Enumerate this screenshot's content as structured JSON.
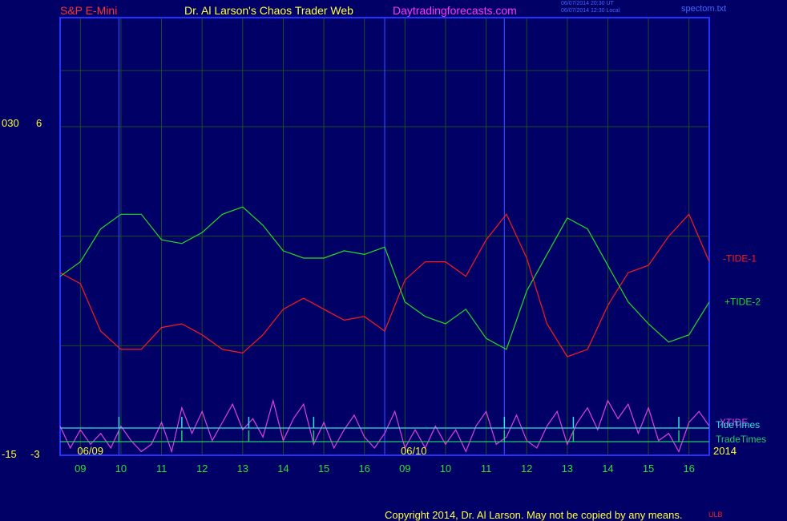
{
  "header": {
    "instrument": "S&P E-Mini",
    "site": "Dr. Al Larson's Chaos Trader Web",
    "url": "Daytradingforecasts.com",
    "timestamp_ut": "06/07/2014 20:30 UT",
    "timestamp_local": "06/07/2014 12:30 Local",
    "file": "spectom.txt"
  },
  "footer": {
    "copyright": "Copyright 2014, Dr. Al Larson. May not be copied by any means.",
    "tag": "ULB"
  },
  "colors": {
    "background": "#000066",
    "frame": "#2233ff",
    "grid": "#1e4d1e",
    "tide1": "#ff1a1a",
    "tide2": "#22dd22",
    "xtide": "#e040e0",
    "tide_times": "#33e0e0",
    "trade_times": "#22cc66",
    "day_divider": "#3344ff",
    "axis_text": "#ffff33",
    "hour_text": "#33dd33",
    "instrument_text": "#ff3333",
    "site_text": "#ffff44",
    "url_text": "#ff33ff"
  },
  "chart_data": {
    "type": "line",
    "y_axis_labels": {
      "top_outer": "030",
      "top_inner": "6",
      "bottom_outer": "-15",
      "bottom_inner": "-3"
    },
    "ylim": [
      -3,
      6
    ],
    "x_hours": [
      "09",
      "10",
      "11",
      "12",
      "13",
      "14",
      "15",
      "16",
      "09",
      "10",
      "11",
      "12",
      "13",
      "14",
      "15",
      "16"
    ],
    "date_labels": [
      "06/09",
      "06/10",
      "2014"
    ],
    "series": [
      {
        "name": "-TIDE-1",
        "x": [
          0,
          1,
          2,
          3,
          4,
          5,
          6,
          7,
          8,
          9,
          10,
          11,
          12,
          13,
          14,
          15,
          16,
          17,
          18,
          19,
          20,
          21,
          22,
          23,
          24,
          25,
          26,
          27,
          28,
          29,
          30,
          31,
          32
        ],
        "values": [
          2.0,
          1.7,
          0.4,
          -0.1,
          -0.1,
          0.5,
          0.6,
          0.3,
          -0.1,
          -0.2,
          0.3,
          1.0,
          1.3,
          1.0,
          0.7,
          0.8,
          0.4,
          1.8,
          2.3,
          2.3,
          1.9,
          2.9,
          3.6,
          2.4,
          0.6,
          -0.3,
          -0.1,
          1.1,
          2.0,
          2.2,
          3.0,
          3.6,
          2.3
        ]
      },
      {
        "name": "+TIDE-2",
        "x": [
          0,
          1,
          2,
          3,
          4,
          5,
          6,
          7,
          8,
          9,
          10,
          11,
          12,
          13,
          14,
          15,
          16,
          17,
          18,
          19,
          20,
          21,
          22,
          23,
          24,
          25,
          26,
          27,
          28,
          29,
          30,
          31,
          32
        ],
        "values": [
          1.9,
          2.3,
          3.2,
          3.6,
          3.6,
          2.9,
          2.8,
          3.1,
          3.6,
          3.8,
          3.3,
          2.6,
          2.4,
          2.4,
          2.6,
          2.5,
          2.7,
          1.2,
          0.8,
          0.6,
          1.0,
          0.2,
          -0.1,
          1.5,
          2.5,
          3.5,
          3.2,
          2.2,
          1.2,
          0.6,
          0.1,
          0.3,
          1.2
        ]
      },
      {
        "name": "XTIDE",
        "x": [
          0,
          0.5,
          1,
          1.5,
          2,
          2.5,
          3,
          3.5,
          4,
          4.5,
          5,
          5.5,
          6,
          6.5,
          7,
          7.5,
          8,
          8.5,
          9,
          9.5,
          10,
          10.5,
          11,
          11.5,
          12,
          12.5,
          13,
          13.5,
          14,
          14.5,
          15,
          15.5,
          16,
          16.5,
          17,
          17.5,
          18,
          18.5,
          19,
          19.5,
          20,
          20.5,
          21,
          21.5,
          22,
          22.5,
          23,
          23.5,
          24,
          24.5,
          25,
          25.5,
          26,
          26.5,
          27,
          27.5,
          28,
          28.5,
          29,
          29.5,
          30,
          30.5,
          31,
          31.5,
          32
        ],
        "values": [
          -2.2,
          -2.8,
          -2.3,
          -2.7,
          -2.4,
          -2.8,
          -2.2,
          -2.6,
          -2.9,
          -2.7,
          -2.1,
          -2.9,
          -1.7,
          -2.4,
          -1.8,
          -2.6,
          -2.1,
          -1.6,
          -2.3,
          -2.0,
          -2.5,
          -1.5,
          -2.6,
          -2.0,
          -1.6,
          -2.7,
          -2.1,
          -2.8,
          -2.3,
          -1.9,
          -2.5,
          -2.8,
          -2.4,
          -1.8,
          -2.8,
          -2.3,
          -2.8,
          -2.2,
          -2.7,
          -2.3,
          -2.9,
          -2.2,
          -1.8,
          -2.7,
          -2.5,
          -1.9,
          -2.6,
          -2.8,
          -2.2,
          -1.8,
          -2.7,
          -2.1,
          -1.7,
          -2.3,
          -1.5,
          -2.0,
          -1.6,
          -2.4,
          -1.7,
          -2.6,
          -2.4,
          -2.9,
          -2.1,
          -1.8,
          -2.2
        ]
      }
    ],
    "markers": {
      "trade_times_label": "TradeTimes",
      "tide_times_label": "TideTimes",
      "trade_times_x": [
        2.9,
        6.0,
        9.3,
        12.5,
        21.9,
        25.3,
        30.5
      ],
      "tide_times_x": [
        2.9,
        6.0,
        9.3,
        12.5,
        21.9,
        25.3,
        30.5
      ]
    },
    "day_divider_x": [
      2.9,
      16.0,
      21.9
    ],
    "grid": true
  }
}
